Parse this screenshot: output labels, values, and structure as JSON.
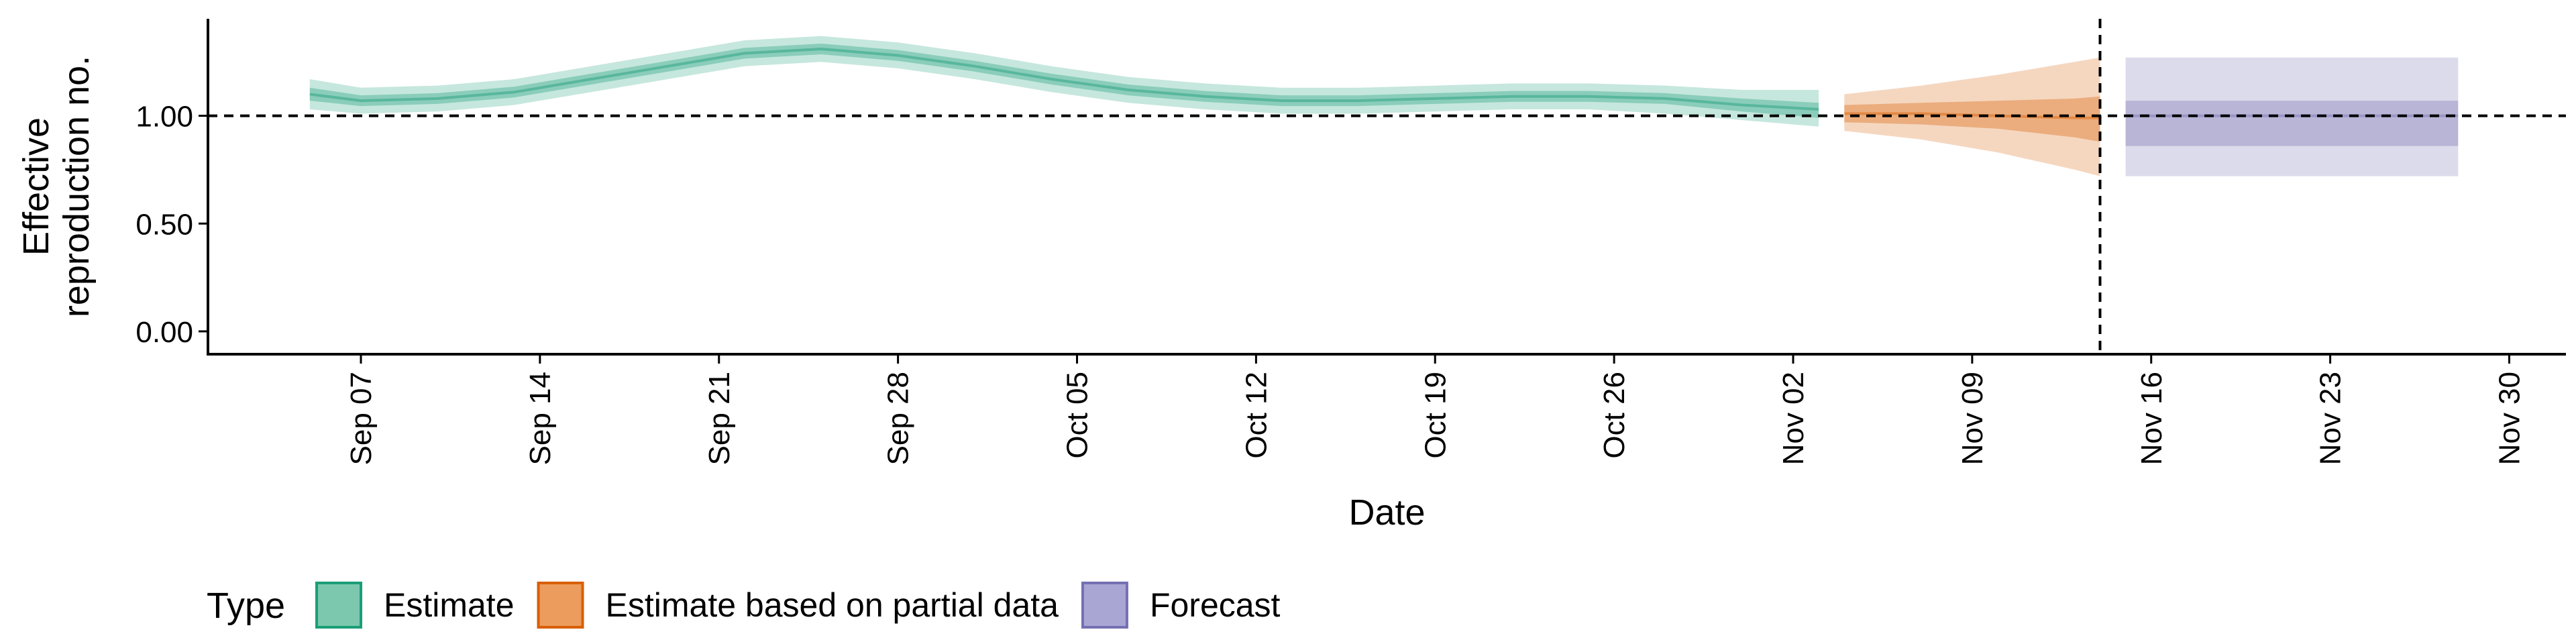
{
  "chart_data": {
    "type": "area",
    "xlabel": "Date",
    "ylabel_lines": [
      "Effective",
      "reproduction no."
    ],
    "x_range": [
      "2020-09-01",
      "2020-12-01"
    ],
    "ylim": [
      -0.05,
      1.45
    ],
    "y_ticks": [
      0.0,
      0.5,
      1.0
    ],
    "y_tick_labels": [
      "0.00",
      "0.50",
      "1.00"
    ],
    "x_ticks": [
      "2020-09-07",
      "2020-09-14",
      "2020-09-21",
      "2020-09-28",
      "2020-10-05",
      "2020-10-12",
      "2020-10-19",
      "2020-10-26",
      "2020-11-02",
      "2020-11-09",
      "2020-11-16",
      "2020-11-23",
      "2020-11-30"
    ],
    "x_tick_labels": [
      "Sep 07",
      "Sep 14",
      "Sep 21",
      "Sep 28",
      "Oct 05",
      "Oct 12",
      "Oct 19",
      "Oct 26",
      "Nov 02",
      "Nov 09",
      "Nov 16",
      "Nov 23",
      "Nov 30"
    ],
    "reference_line_y": 1.0,
    "vertical_line_date": "2020-11-14",
    "grid": false,
    "legend": {
      "title": "Type",
      "position": "bottom-left",
      "entries": [
        {
          "label": "Estimate",
          "fill": "#7bc8ae",
          "border": "#1b9e77"
        },
        {
          "label": "Estimate based on partial data",
          "fill": "#ec9c5d",
          "border": "#d95f02"
        },
        {
          "label": "Forecast",
          "fill": "#a9a6d3",
          "border": "#7570b3"
        }
      ]
    },
    "series": [
      {
        "name": "Estimate",
        "color": "#1b9e77",
        "points": [
          {
            "date": "2020-09-05",
            "median": 1.1,
            "lower50": 1.07,
            "upper50": 1.13,
            "lower90": 1.03,
            "upper90": 1.17
          },
          {
            "date": "2020-09-07",
            "median": 1.07,
            "lower50": 1.045,
            "upper50": 1.095,
            "lower90": 1.01,
            "upper90": 1.13
          },
          {
            "date": "2020-09-10",
            "median": 1.08,
            "lower50": 1.055,
            "upper50": 1.105,
            "lower90": 1.02,
            "upper90": 1.14
          },
          {
            "date": "2020-09-13",
            "median": 1.11,
            "lower50": 1.085,
            "upper50": 1.135,
            "lower90": 1.05,
            "upper90": 1.17
          },
          {
            "date": "2020-09-16",
            "median": 1.17,
            "lower50": 1.145,
            "upper50": 1.195,
            "lower90": 1.11,
            "upper90": 1.23
          },
          {
            "date": "2020-09-19",
            "median": 1.23,
            "lower50": 1.205,
            "upper50": 1.255,
            "lower90": 1.17,
            "upper90": 1.29
          },
          {
            "date": "2020-09-22",
            "median": 1.29,
            "lower50": 1.265,
            "upper50": 1.315,
            "lower90": 1.23,
            "upper90": 1.35
          },
          {
            "date": "2020-09-25",
            "median": 1.31,
            "lower50": 1.285,
            "upper50": 1.335,
            "lower90": 1.25,
            "upper90": 1.37
          },
          {
            "date": "2020-09-28",
            "median": 1.28,
            "lower50": 1.255,
            "upper50": 1.305,
            "lower90": 1.22,
            "upper90": 1.34
          },
          {
            "date": "2020-10-01",
            "median": 1.23,
            "lower50": 1.205,
            "upper50": 1.255,
            "lower90": 1.17,
            "upper90": 1.29
          },
          {
            "date": "2020-10-04",
            "median": 1.17,
            "lower50": 1.145,
            "upper50": 1.195,
            "lower90": 1.11,
            "upper90": 1.23
          },
          {
            "date": "2020-10-07",
            "median": 1.12,
            "lower50": 1.095,
            "upper50": 1.145,
            "lower90": 1.06,
            "upper90": 1.18
          },
          {
            "date": "2020-10-10",
            "median": 1.09,
            "lower50": 1.065,
            "upper50": 1.115,
            "lower90": 1.03,
            "upper90": 1.15
          },
          {
            "date": "2020-10-13",
            "median": 1.07,
            "lower50": 1.045,
            "upper50": 1.095,
            "lower90": 1.01,
            "upper90": 1.13
          },
          {
            "date": "2020-10-16",
            "median": 1.07,
            "lower50": 1.045,
            "upper50": 1.095,
            "lower90": 1.01,
            "upper90": 1.13
          },
          {
            "date": "2020-10-19",
            "median": 1.08,
            "lower50": 1.055,
            "upper50": 1.105,
            "lower90": 1.02,
            "upper90": 1.14
          },
          {
            "date": "2020-10-22",
            "median": 1.09,
            "lower50": 1.065,
            "upper50": 1.115,
            "lower90": 1.03,
            "upper90": 1.15
          },
          {
            "date": "2020-10-25",
            "median": 1.09,
            "lower50": 1.065,
            "upper50": 1.115,
            "lower90": 1.03,
            "upper90": 1.15
          },
          {
            "date": "2020-10-28",
            "median": 1.08,
            "lower50": 1.055,
            "upper50": 1.105,
            "lower90": 1.01,
            "upper90": 1.14
          },
          {
            "date": "2020-10-31",
            "median": 1.05,
            "lower50": 1.02,
            "upper50": 1.08,
            "lower90": 0.98,
            "upper90": 1.12
          },
          {
            "date": "2020-11-03",
            "median": 1.03,
            "lower50": 0.99,
            "upper50": 1.06,
            "lower90": 0.95,
            "upper90": 1.12
          }
        ]
      },
      {
        "name": "Estimate based on partial data",
        "color": "#d95f02",
        "points": [
          {
            "date": "2020-11-04",
            "median": 1.01,
            "lower50": 0.97,
            "upper50": 1.05,
            "lower90": 0.93,
            "upper90": 1.1
          },
          {
            "date": "2020-11-07",
            "median": 1.01,
            "lower50": 0.96,
            "upper50": 1.06,
            "lower90": 0.89,
            "upper90": 1.14
          },
          {
            "date": "2020-11-10",
            "median": 1.0,
            "lower50": 0.94,
            "upper50": 1.07,
            "lower90": 0.83,
            "upper90": 1.19
          },
          {
            "date": "2020-11-13",
            "median": 0.99,
            "lower50": 0.9,
            "upper50": 1.08,
            "lower90": 0.75,
            "upper90": 1.25
          },
          {
            "date": "2020-11-14",
            "median": 0.99,
            "lower50": 0.88,
            "upper50": 1.09,
            "lower90": 0.72,
            "upper90": 1.27
          }
        ]
      },
      {
        "name": "Forecast",
        "color": "#7570b3",
        "points": [
          {
            "date": "2020-11-15",
            "median": 1.0,
            "lower50": 0.86,
            "upper50": 1.07,
            "lower90": 0.72,
            "upper90": 1.27
          },
          {
            "date": "2020-11-28",
            "median": 1.0,
            "lower50": 0.86,
            "upper50": 1.07,
            "lower90": 0.72,
            "upper90": 1.27
          }
        ]
      }
    ]
  }
}
